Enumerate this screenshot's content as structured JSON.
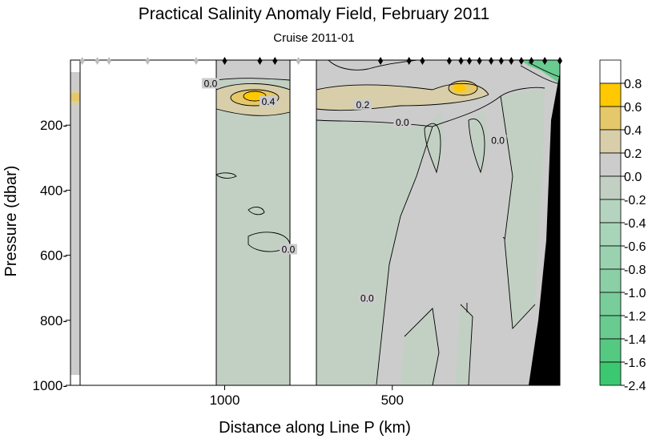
{
  "chart_data": {
    "type": "heatmap",
    "title": "Practical Salinity Anomaly Field,  February 2011",
    "subtitle": "Cruise 2011-01",
    "xlabel": "Distance along Line P  (km)",
    "ylabel": "Pressure  (dbar)",
    "x_range_km": [
      1460,
      0
    ],
    "x_ticks": [
      {
        "value": 1000,
        "label": "1000"
      },
      {
        "value": 500,
        "label": "500"
      }
    ],
    "y_range_dbar": [
      0,
      1000
    ],
    "y_ticks": [
      {
        "value": 200,
        "label": "200-"
      },
      {
        "value": 400,
        "label": "400-"
      },
      {
        "value": 600,
        "label": "600-"
      },
      {
        "value": 800,
        "label": "800-"
      },
      {
        "value": 1000,
        "label": "1000-"
      }
    ],
    "colorbar": {
      "levels": [
        {
          "label": "",
          "color": "#ffffff"
        },
        {
          "label": "0.8",
          "color": "#ffc800"
        },
        {
          "label": "0.6",
          "color": "#e5c86a"
        },
        {
          "label": "0.4",
          "color": "#d8cfaa"
        },
        {
          "label": "0.2",
          "color": "#cccccc"
        },
        {
          "label": "0.0",
          "color": "#c2d0c4"
        },
        {
          "label": "-0.2",
          "color": "#b5d4bf"
        },
        {
          "label": "-0.4",
          "color": "#a8d5b8"
        },
        {
          "label": "-0.6",
          "color": "#9ad2b0"
        },
        {
          "label": "-0.8",
          "color": "#8acfa6"
        },
        {
          "label": "-1.0",
          "color": "#79cd9b"
        },
        {
          "label": "-1.2",
          "color": "#69cb8f"
        },
        {
          "label": "-1.4",
          "color": "#55c882"
        },
        {
          "label": "-1.6",
          "color": "#3cc870"
        }
      ],
      "bottom_label": "-2.4"
    },
    "contour_labels": [
      {
        "text": "0.0",
        "x_km": 1042,
        "p_dbar": 75
      },
      {
        "text": "0.4",
        "x_km": 870,
        "p_dbar": 130
      },
      {
        "text": "0.2",
        "x_km": 588,
        "p_dbar": 140
      },
      {
        "text": "0.0",
        "x_km": 470,
        "p_dbar": 195
      },
      {
        "text": "0.0",
        "x_km": 810,
        "p_dbar": 585
      },
      {
        "text": "0.0",
        "x_km": 185,
        "p_dbar": 250
      },
      {
        "text": "0.0",
        "x_km": 575,
        "p_dbar": 735
      }
    ],
    "station_markers_km": [
      1425,
      1380,
      1345,
      1230,
      1085,
      1000,
      895,
      850,
      780,
      535,
      450,
      410,
      330,
      295,
      270,
      240,
      205,
      175,
      145,
      115,
      85,
      45,
      0
    ],
    "colors": {
      "zero_band": "#cccccc",
      "negative_band": "#c2d0c4",
      "positive_band": "#d8cfaa",
      "high_band": "#e5c86a",
      "max_band": "#ffc800",
      "no_data": "#ffffff",
      "bathymetry": "#000000"
    }
  }
}
